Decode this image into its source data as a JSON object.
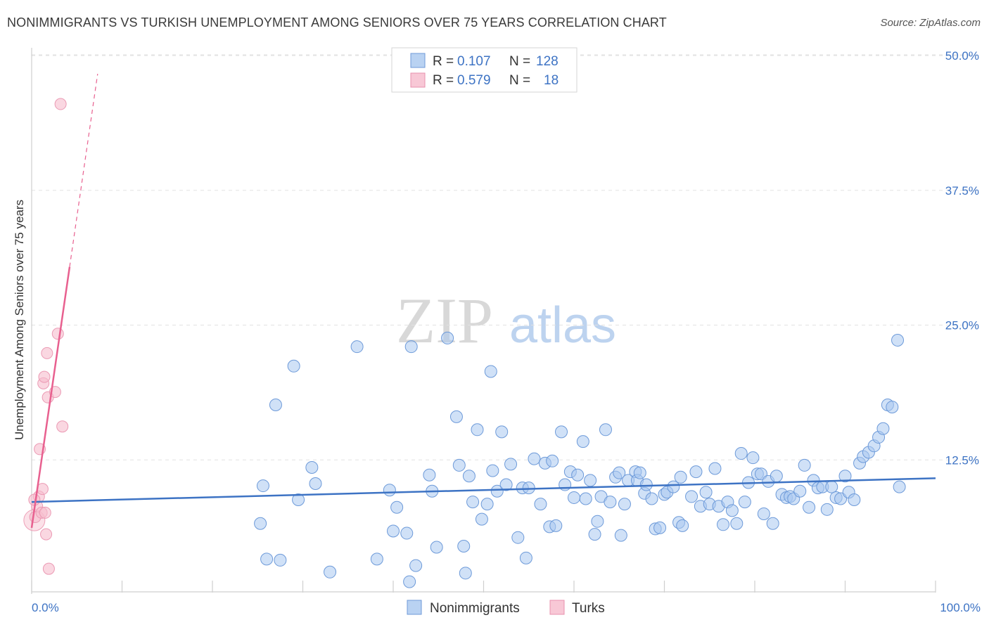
{
  "title": "NONIMMIGRANTS VS TURKISH UNEMPLOYMENT AMONG SENIORS OVER 75 YEARS CORRELATION CHART",
  "source": "Source: ZipAtlas.com",
  "watermark": {
    "zip": "ZIP",
    "atlas": "atlas"
  },
  "colors": {
    "blue": "#3d73c4",
    "blue_fill": "#a9c8f0",
    "pink": "#e8608f",
    "pink_fill": "#f6bccd"
  },
  "chart_data": {
    "type": "scatter",
    "title": "NONIMMIGRANTS VS TURKISH UNEMPLOYMENT AMONG SENIORS OVER 75 YEARS CORRELATION CHART",
    "xlabel": "",
    "ylabel": "Unemployment Among Seniors over 75 years",
    "xlim": [
      0,
      100
    ],
    "ylim": [
      0,
      51
    ],
    "x_tick_labels": [
      "0.0%",
      "100.0%"
    ],
    "y_ticks": [
      12.5,
      25.0,
      37.5,
      50.0
    ],
    "y_tick_labels": [
      "12.5%",
      "25.0%",
      "37.5%",
      "50.0%"
    ],
    "legend": [
      {
        "name": "Nonimmigrants",
        "r_label": "R =",
        "r": "0.107",
        "n_label": "N =",
        "n": "128"
      },
      {
        "name": "Turks",
        "r_label": "R =",
        "r": "0.579",
        "n_label": "N =",
        "n": "18"
      }
    ],
    "series": [
      {
        "name": "Nonimmigrants",
        "trend": {
          "x": [
            0,
            100
          ],
          "y": [
            8.6,
            10.8
          ]
        },
        "points": [
          [
            25.3,
            6.6
          ],
          [
            25.6,
            10.1
          ],
          [
            26.0,
            3.3
          ],
          [
            27.0,
            17.6
          ],
          [
            27.5,
            3.2
          ],
          [
            29.0,
            21.2
          ],
          [
            29.5,
            8.8
          ],
          [
            31.0,
            11.8
          ],
          [
            31.4,
            10.3
          ],
          [
            33.0,
            2.1
          ],
          [
            36.0,
            23.0
          ],
          [
            38.2,
            3.3
          ],
          [
            39.6,
            9.7
          ],
          [
            40.0,
            5.9
          ],
          [
            40.4,
            8.1
          ],
          [
            42.0,
            23.0
          ],
          [
            42.5,
            2.7
          ],
          [
            41.8,
            1.2
          ],
          [
            41.5,
            5.7
          ],
          [
            44.0,
            11.1
          ],
          [
            44.3,
            9.6
          ],
          [
            44.8,
            4.4
          ],
          [
            46.0,
            23.8
          ],
          [
            47.0,
            16.5
          ],
          [
            47.3,
            12.0
          ],
          [
            47.8,
            4.5
          ],
          [
            48.0,
            2.0
          ],
          [
            48.4,
            11.0
          ],
          [
            48.8,
            8.6
          ],
          [
            49.3,
            15.3
          ],
          [
            49.8,
            7.0
          ],
          [
            50.4,
            8.4
          ],
          [
            50.8,
            20.7
          ],
          [
            51.0,
            11.5
          ],
          [
            51.5,
            9.6
          ],
          [
            52.0,
            15.1
          ],
          [
            52.5,
            10.2
          ],
          [
            53.0,
            12.1
          ],
          [
            53.8,
            5.3
          ],
          [
            54.3,
            9.9
          ],
          [
            54.7,
            3.4
          ],
          [
            55.0,
            9.9
          ],
          [
            55.6,
            12.6
          ],
          [
            56.3,
            8.4
          ],
          [
            56.8,
            12.2
          ],
          [
            57.3,
            6.3
          ],
          [
            57.6,
            12.4
          ],
          [
            58.0,
            6.4
          ],
          [
            58.6,
            15.1
          ],
          [
            59.0,
            10.2
          ],
          [
            59.6,
            11.4
          ],
          [
            60.0,
            9.0
          ],
          [
            60.4,
            11.1
          ],
          [
            61.0,
            14.2
          ],
          [
            61.3,
            8.9
          ],
          [
            61.8,
            10.6
          ],
          [
            62.3,
            5.6
          ],
          [
            62.6,
            6.8
          ],
          [
            63.0,
            9.1
          ],
          [
            63.5,
            15.3
          ],
          [
            64.0,
            8.6
          ],
          [
            64.6,
            10.9
          ],
          [
            65.0,
            11.3
          ],
          [
            65.2,
            5.5
          ],
          [
            65.6,
            8.4
          ],
          [
            66.0,
            10.6
          ],
          [
            66.8,
            11.4
          ],
          [
            67.0,
            10.6
          ],
          [
            67.3,
            11.3
          ],
          [
            67.8,
            9.4
          ],
          [
            68.0,
            10.2
          ],
          [
            68.6,
            8.9
          ],
          [
            69.0,
            6.1
          ],
          [
            69.5,
            6.2
          ],
          [
            70.0,
            9.3
          ],
          [
            70.3,
            9.5
          ],
          [
            71.0,
            10.0
          ],
          [
            71.6,
            6.7
          ],
          [
            71.8,
            10.9
          ],
          [
            72.0,
            6.4
          ],
          [
            73.0,
            9.1
          ],
          [
            73.5,
            11.4
          ],
          [
            74.0,
            8.2
          ],
          [
            74.6,
            9.5
          ],
          [
            75.0,
            8.4
          ],
          [
            75.6,
            11.7
          ],
          [
            76.0,
            8.2
          ],
          [
            76.5,
            6.5
          ],
          [
            77.0,
            8.6
          ],
          [
            77.5,
            7.8
          ],
          [
            78.0,
            6.6
          ],
          [
            78.5,
            13.1
          ],
          [
            78.9,
            8.6
          ],
          [
            79.3,
            10.4
          ],
          [
            79.8,
            12.7
          ],
          [
            80.3,
            11.2
          ],
          [
            80.7,
            11.2
          ],
          [
            81.0,
            7.5
          ],
          [
            81.5,
            10.5
          ],
          [
            82.0,
            6.6
          ],
          [
            82.4,
            11.0
          ],
          [
            83.0,
            9.3
          ],
          [
            83.5,
            9.0
          ],
          [
            83.9,
            9.1
          ],
          [
            84.3,
            8.9
          ],
          [
            85.0,
            9.6
          ],
          [
            85.5,
            12.0
          ],
          [
            86.0,
            8.1
          ],
          [
            86.5,
            10.6
          ],
          [
            87.0,
            9.9
          ],
          [
            87.5,
            10.0
          ],
          [
            88.0,
            7.9
          ],
          [
            88.5,
            10.0
          ],
          [
            89.0,
            9.0
          ],
          [
            89.5,
            8.9
          ],
          [
            90.0,
            11.0
          ],
          [
            90.4,
            9.5
          ],
          [
            91.0,
            8.8
          ],
          [
            91.6,
            12.2
          ],
          [
            92.0,
            12.8
          ],
          [
            92.6,
            13.2
          ],
          [
            93.2,
            13.8
          ],
          [
            93.7,
            14.6
          ],
          [
            94.2,
            15.4
          ],
          [
            94.7,
            17.6
          ],
          [
            95.2,
            17.4
          ],
          [
            95.8,
            23.6
          ],
          [
            96.0,
            10.0
          ]
        ]
      },
      {
        "name": "Turks",
        "trend": {
          "x": [
            0,
            4.2
          ],
          "y": [
            6.2,
            30.4
          ]
        },
        "trend_extension": {
          "x": [
            4.2,
            7.3
          ],
          "y": [
            30.4,
            48.3
          ]
        },
        "points": [
          [
            0.4,
            7.2
          ],
          [
            0.6,
            8.2
          ],
          [
            0.8,
            9.1
          ],
          [
            0.9,
            13.5
          ],
          [
            1.1,
            7.6
          ],
          [
            1.2,
            9.8
          ],
          [
            1.3,
            19.6
          ],
          [
            1.4,
            20.2
          ],
          [
            1.5,
            7.6
          ],
          [
            1.6,
            5.6
          ],
          [
            1.7,
            22.4
          ],
          [
            1.8,
            18.3
          ],
          [
            1.9,
            2.4
          ],
          [
            2.6,
            18.8
          ],
          [
            2.9,
            24.2
          ],
          [
            3.2,
            45.5
          ],
          [
            3.4,
            15.6
          ],
          [
            0.3,
            8.8
          ]
        ]
      }
    ]
  }
}
